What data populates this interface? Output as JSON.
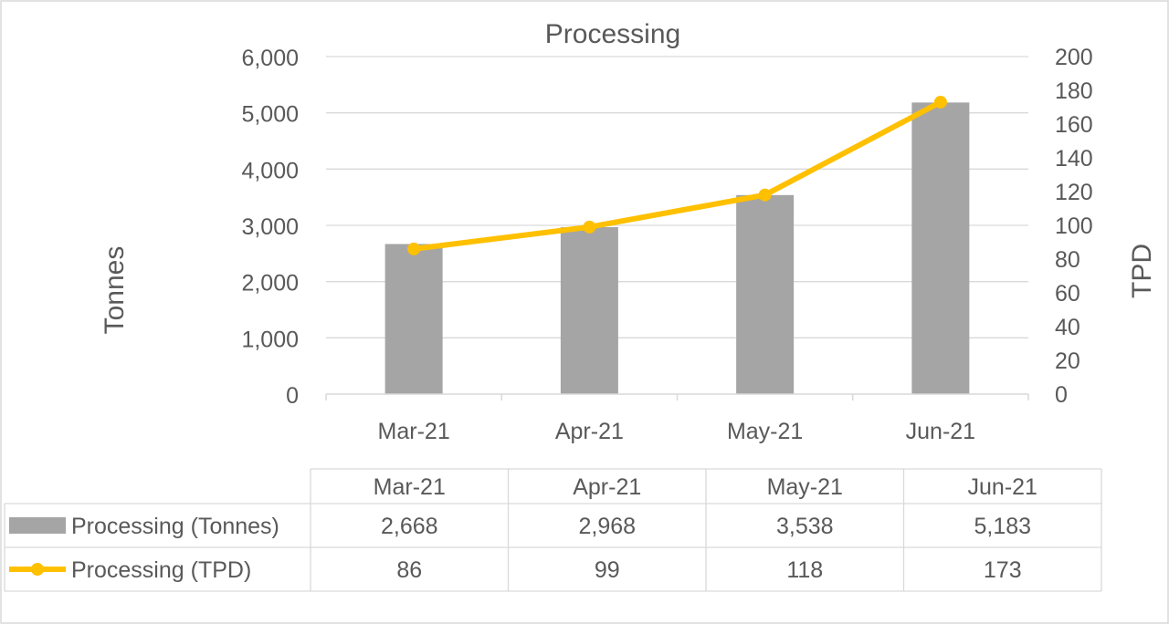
{
  "chart_data": {
    "type": "bar",
    "title": "Processing",
    "xlabel": "",
    "ylabel": "Tonnes",
    "y2label": "TPD",
    "categories": [
      "Mar-21",
      "Apr-21",
      "May-21",
      "Jun-21"
    ],
    "ylim": [
      0,
      6000
    ],
    "y_ticks": [
      "0",
      "1,000",
      "2,000",
      "3,000",
      "4,000",
      "5,000",
      "6,000"
    ],
    "y2lim": [
      0,
      200
    ],
    "y2_ticks": [
      "0",
      "20",
      "40",
      "60",
      "80",
      "100",
      "120",
      "140",
      "160",
      "180",
      "200"
    ],
    "grid": true,
    "legend": "data-table",
    "series": [
      {
        "name": "Processing (Tonnes)",
        "type": "bar",
        "axis": "left",
        "color": "#A5A5A5",
        "values": [
          2668,
          2968,
          3538,
          5183
        ],
        "labels": [
          "2,668",
          "2,968",
          "3,538",
          "5,183"
        ]
      },
      {
        "name": "Processing (TPD)",
        "type": "line",
        "axis": "right",
        "color": "#FFC000",
        "values": [
          86,
          99,
          118,
          173
        ],
        "labels": [
          "86",
          "99",
          "118",
          "173"
        ]
      }
    ]
  }
}
